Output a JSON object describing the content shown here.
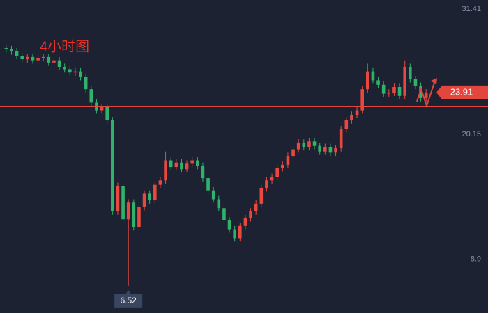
{
  "chart_data": {
    "type": "candlestick",
    "title": "4小时图",
    "open": [
      27.9,
      27.8,
      27.6,
      27.2,
      26.9,
      27.1,
      26.8,
      27.0,
      27.1,
      26.6,
      26.8,
      26.2,
      26.0,
      25.7,
      25.8,
      25.3,
      24.2,
      23.0,
      22.3,
      22.6,
      21.4,
      13.2,
      15.5,
      12.5,
      14.0,
      11.8,
      13.6,
      14.8,
      14.2,
      15.6,
      16.0,
      17.8,
      17.2,
      17.6,
      17.0,
      17.5,
      17.8,
      17.3,
      16.2,
      15.1,
      14.3,
      13.5,
      12.4,
      11.6,
      10.8,
      11.9,
      12.6,
      13.2,
      13.9,
      15.3,
      16.0,
      16.3,
      17.1,
      17.4,
      18.2,
      18.8,
      19.4,
      19.0,
      19.5,
      19.1,
      18.6,
      19.0,
      18.5,
      18.9,
      20.6,
      21.4,
      21.9,
      22.3,
      24.2,
      25.8,
      25.0,
      24.6,
      23.8,
      23.9,
      24.4,
      23.6,
      26.2,
      25.1,
      24.5,
      23.4
    ],
    "high": [
      28.2,
      28.1,
      27.9,
      27.5,
      27.4,
      27.4,
      27.3,
      27.4,
      27.4,
      27.1,
      27.1,
      26.5,
      26.3,
      26.1,
      26.1,
      25.6,
      24.5,
      23.3,
      22.9,
      22.9,
      21.7,
      15.8,
      15.8,
      14.3,
      14.3,
      13.9,
      15.1,
      15.1,
      15.9,
      16.3,
      18.6,
      18.1,
      17.9,
      17.9,
      17.8,
      18.1,
      18.1,
      17.6,
      16.5,
      15.4,
      14.6,
      13.8,
      12.7,
      11.9,
      12.2,
      12.9,
      13.5,
      14.2,
      15.6,
      16.3,
      16.6,
      17.4,
      17.7,
      18.5,
      19.1,
      19.7,
      19.7,
      19.8,
      19.8,
      19.4,
      19.3,
      19.3,
      19.2,
      20.9,
      21.7,
      22.2,
      22.6,
      24.5,
      26.5,
      26.1,
      25.3,
      24.9,
      24.2,
      24.7,
      24.7,
      26.8,
      26.5,
      25.4,
      24.8,
      24.21
    ],
    "low": [
      27.5,
      27.3,
      26.9,
      26.6,
      26.6,
      26.5,
      26.5,
      26.7,
      26.3,
      26.3,
      25.9,
      25.7,
      25.4,
      25.4,
      25.0,
      23.9,
      22.7,
      22.0,
      22.0,
      21.1,
      12.9,
      12.9,
      12.2,
      6.52,
      11.5,
      11.5,
      13.3,
      13.9,
      13.9,
      15.3,
      15.7,
      16.9,
      16.9,
      16.7,
      16.7,
      17.2,
      17.0,
      15.9,
      14.8,
      14.0,
      13.2,
      12.1,
      11.3,
      10.5,
      10.5,
      11.6,
      12.3,
      12.9,
      13.6,
      15.0,
      15.7,
      16.0,
      16.8,
      17.1,
      17.9,
      18.5,
      18.7,
      18.7,
      18.8,
      18.3,
      18.3,
      18.2,
      18.2,
      18.6,
      20.3,
      21.1,
      21.6,
      22.0,
      23.9,
      24.7,
      24.3,
      23.5,
      23.5,
      23.6,
      23.3,
      23.3,
      24.8,
      24.2,
      23.1,
      23.1
    ],
    "close": [
      27.8,
      27.6,
      27.2,
      26.9,
      27.1,
      26.8,
      27.0,
      27.1,
      26.6,
      26.8,
      26.2,
      26.0,
      25.7,
      25.8,
      25.3,
      24.2,
      23.0,
      22.3,
      22.6,
      21.4,
      13.2,
      15.5,
      12.5,
      14.0,
      11.8,
      13.6,
      14.8,
      14.2,
      15.6,
      16.0,
      17.8,
      17.2,
      17.6,
      17.0,
      17.5,
      17.8,
      17.3,
      16.2,
      15.1,
      14.3,
      13.5,
      12.4,
      11.6,
      10.8,
      11.9,
      12.6,
      13.2,
      13.9,
      15.3,
      16.0,
      16.3,
      17.1,
      17.4,
      18.2,
      18.8,
      19.4,
      19.0,
      19.5,
      19.1,
      18.6,
      19.0,
      18.5,
      18.9,
      20.6,
      21.4,
      21.9,
      22.3,
      24.2,
      25.8,
      25.0,
      24.6,
      23.8,
      23.9,
      24.4,
      23.6,
      26.2,
      25.1,
      24.5,
      23.4,
      23.91
    ],
    "colors": {
      "up": "#e8493f",
      "down": "#2fb36a"
    },
    "ylim": [
      4.07,
      32.22
    ],
    "yticks": [
      31.41,
      20.15,
      8.9
    ],
    "hline": 22.65,
    "hline_color": "#e2463c"
  }
}
